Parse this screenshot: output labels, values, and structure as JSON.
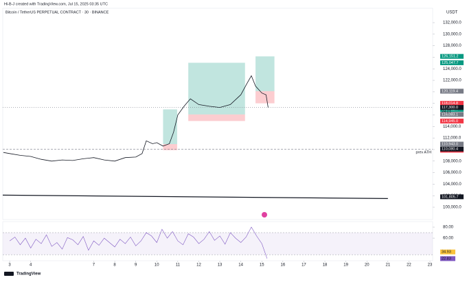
{
  "header": {
    "creator": "Hi-B-J created with TradingView.com, Jul 15, 2025 03:35 UTC",
    "symbol": "Bitcoin / TetherUS PERPETUAL CONTRACT · 30 · BINANCE",
    "currency": "USDT"
  },
  "footer": {
    "brand": "TradingView"
  },
  "chart_data": [
    {
      "type": "line",
      "color": "#131722",
      "x": [
        2.7,
        3,
        3.5,
        4,
        4.5,
        5,
        5.5,
        6,
        6.5,
        7,
        7.5,
        8,
        8.5,
        9,
        9.3,
        9.5,
        9.8,
        10,
        10.3,
        10.6,
        10.8,
        11,
        11.3,
        11.6,
        12,
        12.5,
        13,
        13.5,
        14,
        14.3,
        14.5,
        14.7,
        15,
        15.2,
        15.3
      ],
      "values": [
        109500,
        109300,
        109000,
        108800,
        108300,
        108000,
        108200,
        108100,
        108400,
        108600,
        108200,
        108000,
        108600,
        108700,
        109300,
        111500,
        111000,
        111200,
        110600,
        111000,
        113000,
        116000,
        117500,
        118800,
        117800,
        117500,
        117300,
        117800,
        119500,
        121500,
        122800,
        121000,
        119800,
        119500,
        117300
      ],
      "xlim": [
        2.67,
        23.13
      ],
      "xticks": [
        3,
        4,
        7,
        8,
        9,
        10,
        11,
        12,
        13,
        14,
        15,
        16,
        17,
        18,
        19,
        20,
        21,
        22,
        23
      ],
      "ylim": [
        97860,
        134500
      ],
      "yticks": [
        {
          "value": 100000,
          "label": "100,000.0"
        },
        {
          "value": 102000,
          "label": "102,000.0"
        },
        {
          "value": 104000,
          "label": "104,000.0"
        },
        {
          "value": 106000,
          "label": "106,000.0"
        },
        {
          "value": 108000,
          "label": "108,000.0"
        },
        {
          "value": 110000,
          "label": "110,000.0"
        },
        {
          "value": 112000,
          "label": "112,000.0"
        },
        {
          "value": 114000,
          "label": "114,000.0"
        },
        {
          "value": 116000,
          "label": "116,000.0"
        },
        {
          "value": 118000,
          "label": "118,000.0"
        },
        {
          "value": 120000,
          "label": "120,000.0"
        },
        {
          "value": 122000,
          "label": "122,000.0"
        },
        {
          "value": 124000,
          "label": "124,000.0"
        },
        {
          "value": 126000,
          "label": "126,000.0"
        },
        {
          "value": 128000,
          "label": "128,000.0"
        },
        {
          "value": 130000,
          "label": "130,000.0"
        },
        {
          "value": 132000,
          "label": "132,000.0"
        }
      ],
      "positions": [
        {
          "x": [
            10.3,
            10.97
          ],
          "target": {
            "value": 116963.7,
            "label": "116,963.7"
          },
          "entry": {
            "value": 110943.0,
            "label": "110,943.0"
          },
          "stop": {
            "value": 109889.4,
            "label": "109,889.4"
          }
        },
        {
          "x": [
            11.5,
            14.2
          ],
          "target": {
            "value": 125047.7,
            "label": "125,047.7"
          },
          "entry": {
            "value": 116083.1,
            "label": "116,083.1"
          },
          "stop": {
            "value": 114945.0,
            "label": "114,945.0"
          }
        },
        {
          "x": [
            14.7,
            15.6
          ],
          "target": {
            "value": 126151.2,
            "label": "126,151.2"
          },
          "entry": {
            "value": 120119.4,
            "label": "120,119.4"
          },
          "stop": {
            "value": 118014.8,
            "label": "118,014.8"
          }
        }
      ],
      "levels": [
        {
          "value": 117300,
          "label": "117,300.0",
          "countdown": "24:21",
          "style": "dotted"
        },
        {
          "value": 110080.4,
          "label": "110,080.4",
          "annotation": "prev ATH",
          "style": "dashed"
        }
      ],
      "trendline": {
        "x": [
          2.67,
          21
        ],
        "y": [
          102100,
          101500
        ],
        "tag": {
          "value": 101805.7,
          "label": "101,805.7"
        }
      }
    },
    {
      "type": "line",
      "color": "#7e57c2",
      "x": [
        3,
        3.25,
        3.5,
        3.75,
        4,
        4.25,
        4.5,
        4.75,
        5,
        5.25,
        5.5,
        5.75,
        6,
        6.25,
        6.5,
        6.75,
        7,
        7.25,
        7.5,
        7.75,
        8,
        8.25,
        8.5,
        8.75,
        9,
        9.25,
        9.5,
        9.75,
        10,
        10.25,
        10.5,
        10.75,
        11,
        11.25,
        11.5,
        11.75,
        12,
        12.25,
        12.5,
        12.75,
        13,
        13.25,
        13.5,
        13.75,
        14,
        14.25,
        14.5,
        14.75,
        15,
        15.25
      ],
      "values": [
        55,
        62,
        48,
        60,
        42,
        58,
        50,
        66,
        45,
        52,
        40,
        61,
        57,
        48,
        63,
        38,
        55,
        47,
        60,
        52,
        44,
        58,
        50,
        62,
        46,
        55,
        70,
        64,
        52,
        76,
        60,
        72,
        55,
        48,
        68,
        62,
        50,
        58,
        72,
        56,
        64,
        49,
        70,
        60,
        52,
        62,
        80,
        64,
        50,
        23
      ],
      "ylim": [
        19,
        90
      ],
      "yticks": [
        {
          "value": 60,
          "label": "60.00"
        },
        {
          "value": 80,
          "label": "80.00"
        }
      ],
      "bands": [
        30,
        70
      ],
      "tags": [
        {
          "value": 34.93,
          "color": "#f9c23c"
        },
        {
          "value": 22.83,
          "color": "#7e57c2"
        }
      ]
    }
  ]
}
